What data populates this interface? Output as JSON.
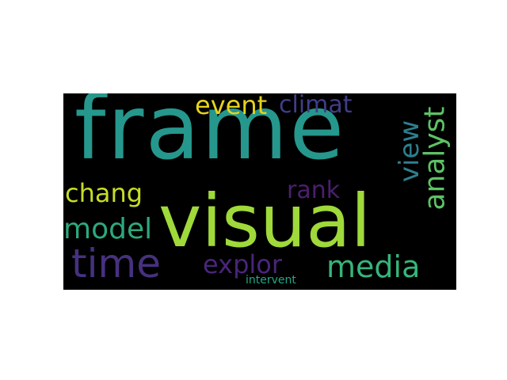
{
  "wordcloud": {
    "background": "#000000",
    "words": [
      {
        "text": "frame",
        "color": "#26978c"
      },
      {
        "text": "visual",
        "color": "#9fd93a"
      },
      {
        "text": "time",
        "color": "#46317f"
      },
      {
        "text": "event",
        "color": "#e6d31b"
      },
      {
        "text": "climat",
        "color": "#403d87"
      },
      {
        "text": "chang",
        "color": "#c7dd26"
      },
      {
        "text": "rank",
        "color": "#4b1f6e"
      },
      {
        "text": "view",
        "color": "#2d7f8e"
      },
      {
        "text": "analyst",
        "color": "#5dc264"
      },
      {
        "text": "model",
        "color": "#2ca97b"
      },
      {
        "text": "explor",
        "color": "#49257a"
      },
      {
        "text": "media",
        "color": "#36b57a"
      },
      {
        "text": "intervent",
        "color": "#22a886"
      }
    ]
  }
}
